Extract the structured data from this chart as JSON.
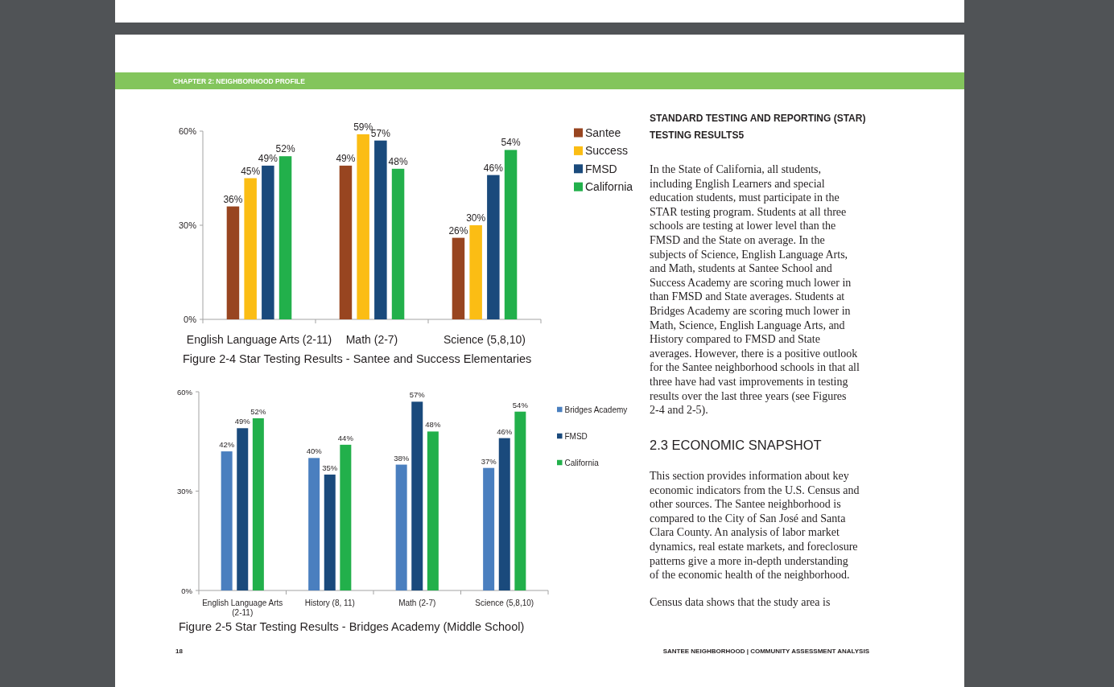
{
  "chart_data": [
    {
      "type": "other",
      "annotations": [
        "CHAPTER 2: NEIGHBORHOOD PROFILE"
      ]
    },
    {
      "type": "bar",
      "title": "Figure 2-4 Star Testing Results - Santee and Success Elementaries",
      "categories": [
        "English Language Arts (2-11)",
        "Math (2-7)",
        "Science (5,8,10)"
      ],
      "series": [
        {
          "name": "Santee",
          "color": "#984520",
          "values": [
            36,
            49,
            26
          ],
          "value_labels": [
            "36%",
            "49%",
            "26%"
          ]
        },
        {
          "name": "Success",
          "color": "#fbbd14",
          "values": [
            45,
            59,
            30
          ],
          "value_labels": [
            "45%",
            "59%",
            "30%"
          ]
        },
        {
          "name": "FMSD",
          "color": "#1a4a7c",
          "values": [
            49,
            57,
            46
          ],
          "value_labels": [
            "49%",
            "57%",
            "46%"
          ]
        },
        {
          "name": "California",
          "color": "#22b04b",
          "values": [
            52,
            48,
            54
          ],
          "value_labels": [
            "52%",
            "48%",
            "54%"
          ]
        }
      ],
      "ylim": [
        0,
        60
      ],
      "yticks": [
        {
          "value": 0,
          "label": "0%"
        },
        {
          "value": 30,
          "label": "30%"
        },
        {
          "value": 60,
          "label": "60%"
        }
      ],
      "legend": "top right"
    },
    {
      "type": "bar",
      "title": "Figure 2-5 Star Testing Results - Bridges Academy (Middle School)",
      "categories": [
        "English Language Arts (2-11)",
        "History (8, 11)",
        "Math (2-7)",
        "Science (5,8,10)"
      ],
      "series": [
        {
          "name": "Bridges Academy",
          "color": "#4a7fbf",
          "values": [
            42,
            40,
            38,
            37
          ],
          "value_labels": [
            "42%",
            "40%",
            "38%",
            "37%"
          ]
        },
        {
          "name": "FMSD",
          "color": "#1a4a7c",
          "values": [
            49,
            35,
            57,
            46
          ],
          "value_labels": [
            "49%",
            "35%",
            "57%",
            "46%"
          ]
        },
        {
          "name": "California",
          "color": "#22b04b",
          "values": [
            52,
            44,
            48,
            54
          ],
          "value_labels": [
            "52%",
            "44%",
            "48%",
            "54%"
          ]
        }
      ],
      "ylim": [
        0,
        60
      ],
      "yticks": [
        {
          "value": 0,
          "label": "0%"
        },
        {
          "value": 30,
          "label": "30%"
        },
        {
          "value": 60,
          "label": "60%"
        }
      ],
      "legend": "top right"
    },
    {
      "type": "other",
      "title": "STANDARD TESTING AND REPORTING (STAR) TESTING RESULTS5",
      "annotations": [
        "In the State of California, all students, including English Learners and special education students, must participate in the STAR testing program. Students at all three schools are testing at lower level than the FMSD and the State on average. In the subjects of Science, English Language Arts, and Math, students at Santee School and Success Academy are scoring much lower in than FMSD and State averages. Students at Bridges Academy are scoring much lower in Math, Science, English Language Arts, and History compared to FMSD and State averages. However, there is a positive outlook for the Santee neighborhood schools in that all three have had vast improvements in testing results over the last three years (see Figures 2-4 and 2-5)."
      ]
    },
    {
      "type": "other",
      "title": "2.3 ECONOMIC SNAPSHOT",
      "annotations": [
        "This section provides information about key economic indicators from the U.S. Census and other sources. The Santee neighborhood is compared to the City of San José and Santa Clara County. An analysis of labor market dynamics, real estate markets, and foreclosure patterns give a more in-depth understanding of the economic health of the neighborhood.",
        "Census data shows that the study area is"
      ]
    },
    {
      "type": "other",
      "annotations": [
        "18",
        "SANTEE NEIGHBORHOOD | COMMUNITY ASSESSMENT ANALYSIS"
      ]
    }
  ]
}
